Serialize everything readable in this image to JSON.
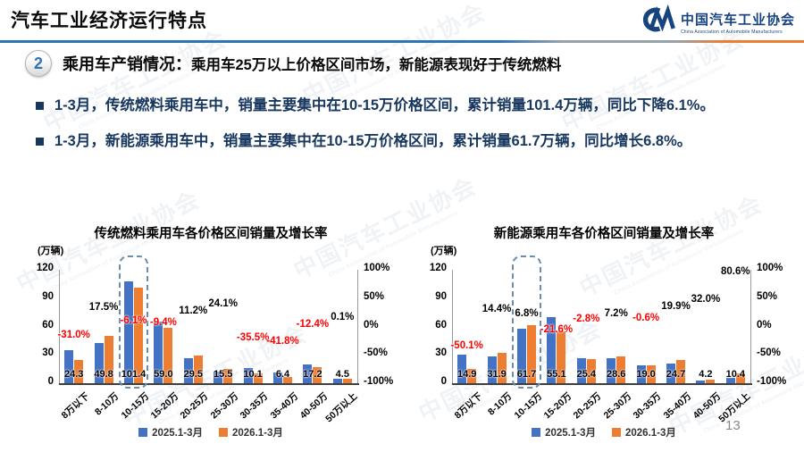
{
  "page": {
    "title": "汽车工业经济运行特点",
    "page_number": "13"
  },
  "logo": {
    "name_cn": "中国汽车工业协会",
    "name_en": "China Association of Automobile Manufacturers"
  },
  "section": {
    "number": "2",
    "heading_lead": "乘用车产销情况：",
    "heading_rest": "乘用车25万以上价格区间市场，新能源表现好于传统燃料"
  },
  "bullets": [
    {
      "text": "1-3月，传统燃料乘用车中，销量主要集中在10-15万价格区间，累计销量101.4万辆，同比下降6.1%。"
    },
    {
      "text": "1-3月，新能源乘用车中，销量主要集中在10-15万价格区间，累计销量61.7万辆，同比增长6.8%。"
    }
  ],
  "colors": {
    "series1": "#4472C4",
    "series2": "#ED7D31",
    "negative_label": "#FF0000",
    "positive_label": "#000000",
    "bullet_text": "#17375E",
    "logo_blue": "#17437F"
  },
  "chart_data": [
    {
      "type": "bar",
      "title": "传统燃料乘用车各价格区间销量及增长率",
      "unit_label": "(万辆)",
      "categories": [
        "8万以下",
        "8-10万",
        "10-15万",
        "15-20万",
        "20-25万",
        "25-30万",
        "30-35万",
        "35-40万",
        "40-50万",
        "50万以上"
      ],
      "series": [
        {
          "name": "2025.1-3月",
          "color": "#4472C4",
          "values": [
            35.2,
            42.4,
            108.0,
            65.1,
            26.5,
            12.5,
            15.7,
            11.0,
            19.6,
            4.5
          ]
        },
        {
          "name": "2026.1-3月",
          "color": "#ED7D31",
          "values": [
            24.3,
            49.8,
            101.4,
            59.0,
            29.5,
            15.5,
            10.1,
            6.4,
            17.2,
            4.5
          ]
        }
      ],
      "value_labels_series": 1,
      "growth_labels": [
        "-31.0%",
        "17.5%",
        "-6.1%",
        "-9.4%",
        "11.2%",
        "24.1%",
        "-35.5%",
        "-41.8%",
        "-12.4%",
        "0.1%"
      ],
      "y_ticks": [
        "120",
        "90",
        "60",
        "30",
        "0"
      ],
      "y2_ticks": [
        "100%",
        "50%",
        "0%",
        "-50%",
        "-100%"
      ],
      "ylim": [
        0,
        120
      ],
      "y2lim": [
        -100,
        100
      ],
      "highlight_index": 2,
      "legend_position": "bottom",
      "grid": false
    },
    {
      "type": "bar",
      "title": "新能源乘用车各价格区间销量及增长率",
      "unit_label": "(万辆)",
      "categories": [
        "8万以下",
        "8-10万",
        "10-15万",
        "15-20万",
        "20-25万",
        "25-30万",
        "30-35万",
        "35-40万",
        "40-50万",
        "50万以上"
      ],
      "series": [
        {
          "name": "2025.1-3月",
          "color": "#4472C4",
          "values": [
            29.9,
            27.9,
            57.8,
            70.3,
            26.1,
            26.7,
            19.1,
            20.6,
            3.2,
            5.8
          ]
        },
        {
          "name": "2026.1-3月",
          "color": "#ED7D31",
          "values": [
            14.9,
            31.9,
            61.7,
            55.1,
            25.4,
            28.6,
            19.0,
            24.7,
            4.2,
            10.4
          ]
        }
      ],
      "value_labels_series": 1,
      "growth_labels": [
        "-50.1%",
        "14.4%",
        "6.8%",
        "-21.6%",
        "-2.8%",
        "7.2%",
        "-0.6%",
        "19.9%",
        "32.0%",
        "80.6%"
      ],
      "y_ticks": [
        "120",
        "90",
        "60",
        "30",
        "0"
      ],
      "y2_ticks": [
        "100%",
        "50%",
        "0%",
        "-50%",
        "-100%"
      ],
      "ylim": [
        0,
        120
      ],
      "y2lim": [
        -100,
        100
      ],
      "highlight_index": 2,
      "legend_position": "bottom",
      "grid": false
    }
  ]
}
